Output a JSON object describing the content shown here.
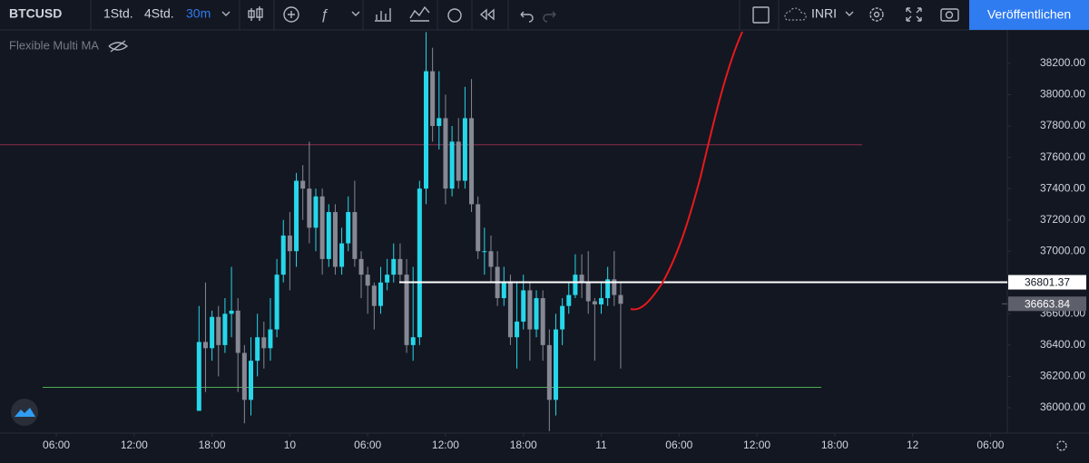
{
  "toolbar": {
    "symbol": "BTCUSD",
    "intervals": [
      "1Std.",
      "4Std.",
      "30m"
    ],
    "indicator_template": "INRI",
    "publish": "Veröffentlichen"
  },
  "chart_data": {
    "type": "candlestick",
    "indicator": "Flexible Multi MA",
    "up_color": "#26d7ea",
    "down_color": "#868993",
    "x": [
      17,
      17.5,
      18,
      18.5,
      19,
      19.5,
      20,
      20.5,
      21,
      21.5,
      22,
      22.5,
      23,
      23.5,
      24,
      24.5,
      25,
      25.5,
      26,
      26.5,
      27,
      27.5,
      28,
      28.5,
      29,
      29.5,
      30,
      30.5,
      31,
      31.5,
      32,
      32.5,
      33,
      33.5,
      34,
      34.5,
      35,
      35.5,
      36,
      36.5,
      37,
      37.5,
      38,
      38.5,
      39,
      39.5,
      40,
      40.5,
      41,
      41.5,
      42,
      42.5,
      43,
      43.5,
      44,
      44.5,
      45,
      45.5,
      46,
      46.5,
      47,
      47.5,
      48,
      48.5,
      49,
      49.5
    ],
    "open": [
      35980,
      36420,
      36380,
      36580,
      36400,
      36600,
      36620,
      36350,
      36050,
      36300,
      36450,
      36380,
      36500,
      36850,
      37100,
      37000,
      37450,
      37400,
      37150,
      37350,
      36950,
      37250,
      36900,
      37050,
      37250,
      36950,
      36850,
      36780,
      36650,
      36800,
      36850,
      36950,
      36850,
      36400,
      36450,
      37400,
      38150,
      37800,
      37850,
      37400,
      37700,
      37450,
      37850,
      37300,
      37000,
      37000,
      36900,
      36700,
      36800,
      36450,
      36550,
      36750,
      36500,
      36700,
      36400,
      36050,
      36500,
      36650,
      36720,
      36850,
      36800,
      36680,
      36660,
      36700,
      36820,
      36720
    ],
    "high": [
      36650,
      36800,
      36620,
      36650,
      36700,
      36900,
      36700,
      36400,
      36450,
      36600,
      36550,
      36700,
      36950,
      37200,
      37250,
      37500,
      37550,
      37700,
      37400,
      37400,
      37300,
      37300,
      37150,
      37350,
      37450,
      37000,
      36900,
      36800,
      36900,
      36950,
      37050,
      37050,
      36950,
      36900,
      37450,
      38400,
      38300,
      38150,
      38000,
      37800,
      37850,
      38050,
      38100,
      37350,
      37150,
      37100,
      37000,
      36900,
      36850,
      36800,
      36850,
      36800,
      36750,
      36750,
      36500,
      36600,
      36700,
      36800,
      36980,
      36980,
      37000,
      36700,
      36800,
      36900,
      37000,
      36800
    ],
    "low": [
      35980,
      36100,
      36300,
      36200,
      36350,
      36450,
      36100,
      35900,
      35950,
      36200,
      36250,
      36300,
      36450,
      36800,
      36750,
      36900,
      37200,
      37050,
      37000,
      36850,
      36900,
      36850,
      36850,
      37000,
      36900,
      36700,
      36600,
      36500,
      36600,
      36750,
      36800,
      36800,
      36350,
      36300,
      36400,
      37300,
      37700,
      37650,
      37300,
      37350,
      37400,
      37400,
      37250,
      36950,
      36850,
      36800,
      36650,
      36650,
      36400,
      36250,
      36500,
      36300,
      36450,
      36300,
      35850,
      35950,
      36400,
      36600,
      36700,
      36700,
      36600,
      36300,
      36600,
      36650,
      36650,
      36250
    ],
    "close": [
      36420,
      36380,
      36580,
      36400,
      36600,
      36620,
      36350,
      36050,
      36300,
      36450,
      36380,
      36500,
      36850,
      37100,
      37000,
      37450,
      37400,
      37150,
      37350,
      36950,
      37250,
      36900,
      37050,
      37250,
      36950,
      36850,
      36780,
      36650,
      36800,
      36850,
      36950,
      36850,
      36400,
      36450,
      37400,
      38150,
      37800,
      37850,
      37400,
      37700,
      37450,
      37850,
      37300,
      37000,
      37000,
      36900,
      36700,
      36800,
      36450,
      36550,
      36750,
      36500,
      36700,
      36400,
      36050,
      36500,
      36650,
      36720,
      36850,
      36800,
      36680,
      36660,
      36700,
      36820,
      36720,
      36663.84
    ],
    "ylim": [
      35826,
      38414
    ],
    "yticks": [
      {
        "value": 36000,
        "label": "36000.00"
      },
      {
        "value": 36200,
        "label": "36200.00"
      },
      {
        "value": 36400,
        "label": "36400.00"
      },
      {
        "value": 36600,
        "label": "36600.00"
      },
      {
        "value": 36800,
        "label": "36800.00"
      },
      {
        "value": 37000,
        "label": "37000.00"
      },
      {
        "value": 37200,
        "label": "37200.00"
      },
      {
        "value": 37400,
        "label": "37400.00"
      },
      {
        "value": 37600,
        "label": "37600.00"
      },
      {
        "value": 37800,
        "label": "37800.00"
      },
      {
        "value": 38000,
        "label": "38000.00"
      },
      {
        "value": 38200,
        "label": "38200.00"
      }
    ],
    "xlim": [
      1.66,
      79.3
    ],
    "xticks": [
      {
        "value": 6,
        "label": "06:00"
      },
      {
        "value": 12,
        "label": "12:00"
      },
      {
        "value": 18,
        "label": "18:00"
      },
      {
        "value": 24,
        "label": "10"
      },
      {
        "value": 30,
        "label": "06:00"
      },
      {
        "value": 36,
        "label": "12:00"
      },
      {
        "value": 42,
        "label": "18:00"
      },
      {
        "value": 48,
        "label": "11"
      },
      {
        "value": 54,
        "label": "06:00"
      },
      {
        "value": 60,
        "label": "12:00"
      },
      {
        "value": 66,
        "label": "18:00"
      },
      {
        "value": 72,
        "label": "12"
      },
      {
        "value": 78,
        "label": "06:00"
      }
    ],
    "horizontal_lines": [
      {
        "value": 37680,
        "color": "#8c2b4a"
      },
      {
        "value": 36130,
        "color": "#4caf50"
      }
    ],
    "price_labels": [
      {
        "value": 36801.37,
        "label": "36801.37",
        "color": "#ffffff",
        "text_color": "#131722"
      },
      {
        "value": 36663.84,
        "label": "36663.84",
        "color": "#5d606b",
        "text_color": "#ffffff"
      }
    ]
  }
}
